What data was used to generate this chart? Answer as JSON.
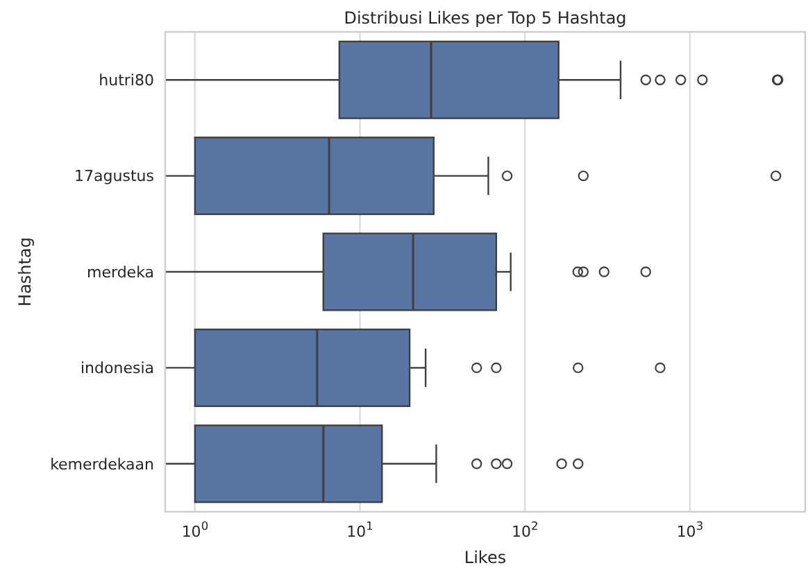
{
  "chart_data": {
    "type": "box",
    "orientation": "horizontal",
    "title": "Distribusi Likes per Top 5 Hashtag",
    "xlabel": "Likes",
    "ylabel": "Hashtag",
    "log": "x",
    "grid": "x",
    "categories": [
      "hutri80",
      "17agustus",
      "merdeka",
      "indonesia",
      "kemerdekaan"
    ],
    "xlim": [
      0.66,
      5000
    ],
    "xticks": [
      {
        "value": 1,
        "label": "10$^{0}$"
      },
      {
        "value": 10,
        "label": "10$^{1}$"
      },
      {
        "value": 100,
        "label": "10$^{2}$"
      },
      {
        "value": 1000,
        "label": "10$^{3}$"
      }
    ],
    "color": "#5975a4",
    "boxes": [
      {
        "low": 0.66,
        "q1": 7.5,
        "median": 27,
        "q3": 160,
        "high": 380,
        "outliers": [
          540,
          660,
          880,
          1190,
          3380,
          3420
        ]
      },
      {
        "low": 0.66,
        "q1": 1,
        "median": 6.5,
        "q3": 28,
        "high": 60,
        "outliers": [
          78,
          226,
          3320
        ]
      },
      {
        "low": 0.66,
        "q1": 6,
        "median": 21,
        "q3": 67,
        "high": 82,
        "outliers": [
          209,
          226,
          302,
          540
        ]
      },
      {
        "low": 0.66,
        "q1": 1,
        "median": 5.5,
        "q3": 20,
        "high": 25,
        "outliers": [
          51,
          67,
          210,
          660
        ]
      },
      {
        "low": 0.66,
        "q1": 1,
        "median": 6,
        "q3": 13.6,
        "high": 29,
        "outliers": [
          51,
          67,
          78,
          167,
          210
        ]
      }
    ]
  }
}
